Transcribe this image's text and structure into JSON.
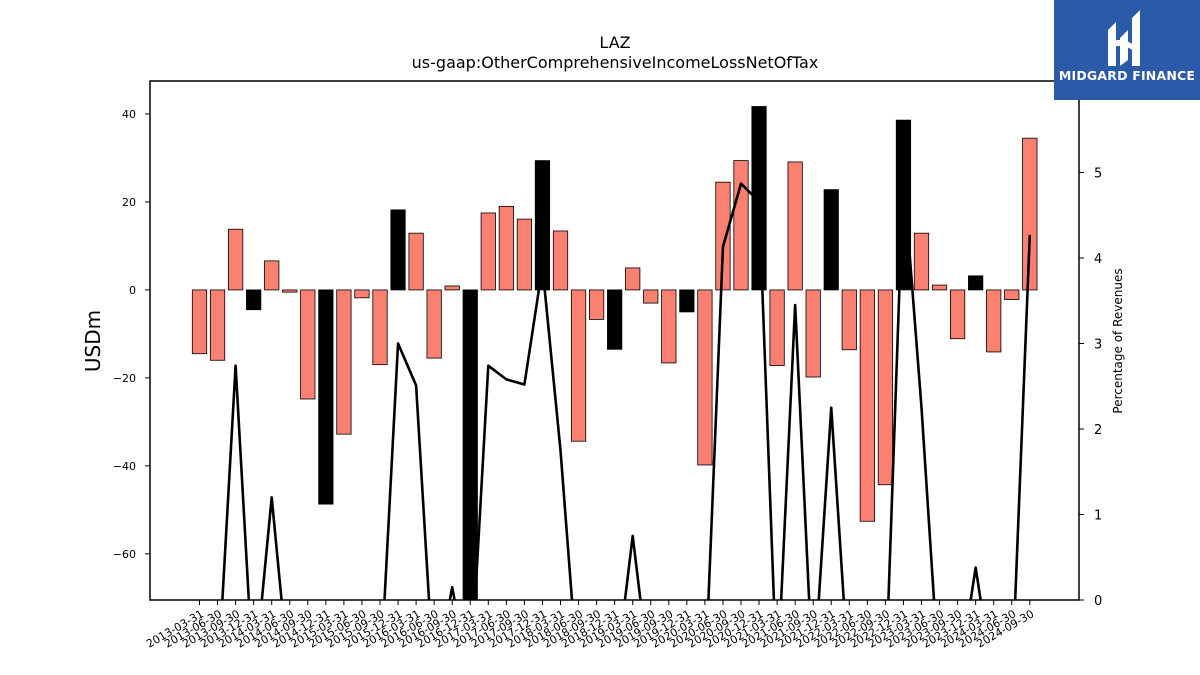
{
  "chart_data": {
    "type": "bar",
    "title": "LAZ",
    "subtitle": "us-gaap:OtherComprehensiveIncomeLossNetOfTax",
    "ylabel": "USDm",
    "y2label": "Percentage of Revenues",
    "ylim": [
      -70.5,
      47.5
    ],
    "y2lim": [
      0,
      6.07
    ],
    "yticks": [
      -60,
      -40,
      -20,
      0,
      20,
      40
    ],
    "y2ticks": [
      0,
      1,
      2,
      3,
      4,
      5
    ],
    "grid": false,
    "legend": "none",
    "categories": [
      "2013-03-31",
      "2013-06-30",
      "2013-09-30",
      "2013-12-31",
      "2014-03-31",
      "2014-06-30",
      "2014-09-30",
      "2014-12-31",
      "2015-03-31",
      "2015-06-30",
      "2015-09-30",
      "2015-12-31",
      "2016-03-31",
      "2016-06-30",
      "2016-09-30",
      "2016-12-31",
      "2017-03-31",
      "2017-06-30",
      "2017-09-30",
      "2017-12-31",
      "2018-03-31",
      "2018-06-30",
      "2018-09-30",
      "2018-12-31",
      "2019-03-31",
      "2019-06-30",
      "2019-09-30",
      "2019-12-31",
      "2020-03-31",
      "2020-06-30",
      "2020-09-30",
      "2020-12-31",
      "2021-03-31",
      "2021-06-30",
      "2021-09-30",
      "2021-12-31",
      "2022-03-31",
      "2022-06-30",
      "2022-09-30",
      "2022-12-31",
      "2023-03-31",
      "2023-06-30",
      "2023-09-30",
      "2023-12-31",
      "2024-03-31",
      "2024-06-30",
      "2024-09-30"
    ],
    "values": [
      -14.5,
      -16,
      13.8,
      -4.5,
      6.6,
      -0.5,
      -24.8,
      -48.7,
      -32.8,
      -1.8,
      -17,
      18.2,
      12.9,
      -15.5,
      0.9,
      -75,
      17.5,
      19,
      16.1,
      29.4,
      13.4,
      -34.4,
      -6.7,
      -13.5,
      5,
      -3,
      -16.6,
      -5,
      -39.8,
      24.5,
      29.4,
      41.7,
      -17.2,
      29.1,
      -19.8,
      22.8,
      -13.6,
      -52.6,
      -44.3,
      38.6,
      12.9,
      1.1,
      -11.1,
      3.2,
      -14.1,
      -2.2,
      34.5
    ],
    "highlight_indices": [
      3,
      7,
      11,
      15,
      19,
      23,
      27,
      31,
      35,
      39,
      43
    ],
    "pct_revenues": [
      -1,
      -1,
      2.74,
      -1,
      1.2,
      -1,
      -1,
      -1,
      -1,
      -1,
      -1,
      3,
      2.51,
      -1,
      0.15,
      -1,
      2.74,
      2.58,
      2.52,
      3.9,
      1.75,
      -1,
      -1,
      -1,
      0.75,
      -1,
      -1,
      -1,
      -1,
      4.13,
      4.87,
      4.66,
      -1,
      3.45,
      -1,
      2.25,
      -1,
      -1,
      -1,
      4.98,
      2.25,
      -1,
      -1,
      0.38,
      -1,
      -1,
      4.27
    ],
    "colors": {
      "bar": "#fa8072",
      "highlight_bar": "#000000",
      "line": "#000000",
      "edge": "#000000"
    }
  },
  "logo": {
    "text": "MIDGARD FINANCE",
    "bg_color": "#2a5aa8",
    "fg_color": "#ffffff"
  }
}
